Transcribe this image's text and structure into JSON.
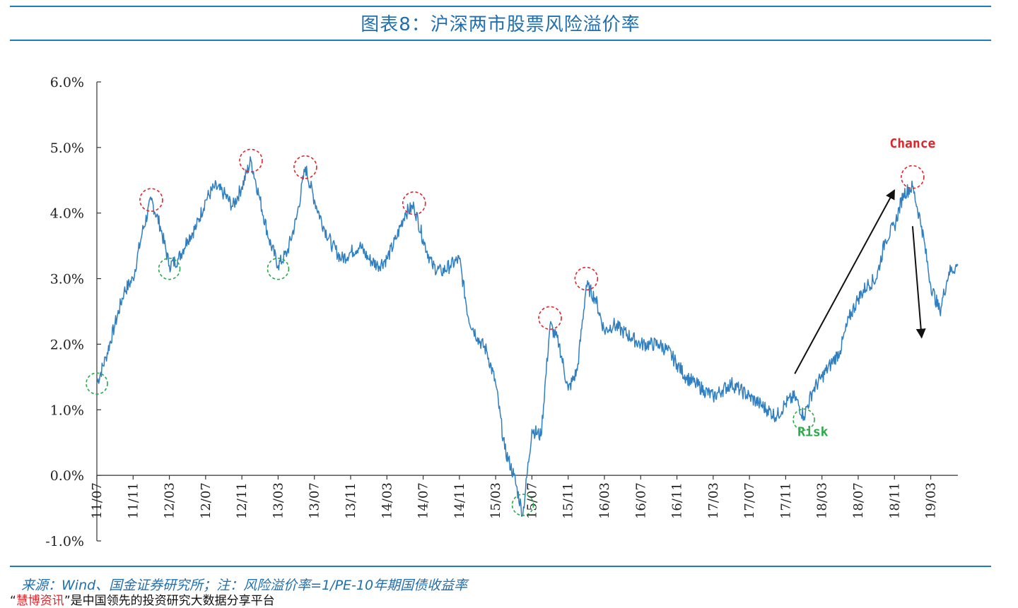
{
  "title": "图表8：沪深两市股票风险溢价率",
  "source": "来源：Wind、国金证券研究所；注：风险溢价率=1/PE-10年期国债收益率",
  "footer": {
    "quote_open": "“",
    "brand": "慧博资讯",
    "quote_close": "”",
    "text": "是中国领先的投资研究大数据分享平台"
  },
  "chart_data": {
    "type": "line",
    "title": "图表8：沪深两市股票风险溢价率",
    "xlabel": "",
    "ylabel": "",
    "ylim": [
      -1.0,
      6.0
    ],
    "yticks": [
      -1.0,
      0.0,
      1.0,
      2.0,
      3.0,
      4.0,
      5.0,
      6.0
    ],
    "ytick_labels": [
      "-1.0%",
      "0.0%",
      "1.0%",
      "2.0%",
      "3.0%",
      "4.0%",
      "5.0%",
      "6.0%"
    ],
    "xticks": [
      "11/07",
      "11/11",
      "12/03",
      "12/07",
      "12/11",
      "13/03",
      "13/07",
      "13/11",
      "14/03",
      "14/07",
      "14/11",
      "15/03",
      "15/07",
      "15/11",
      "16/03",
      "16/07",
      "16/11",
      "17/03",
      "17/07",
      "17/11",
      "18/03",
      "18/07",
      "18/11",
      "19/03"
    ],
    "x_end": "19/06",
    "grid": false,
    "color": "#2f7fc1",
    "series": [
      {
        "name": "",
        "points": [
          [
            "11/07",
            1.4
          ],
          [
            "11/08",
            1.8
          ],
          [
            "11/09",
            2.3
          ],
          [
            "11/10",
            2.8
          ],
          [
            "11/11",
            3.0
          ],
          [
            "11/12",
            3.7
          ],
          [
            "12/01",
            4.2
          ],
          [
            "12/02",
            3.8
          ],
          [
            "12/03",
            3.2
          ],
          [
            "12/04",
            3.3
          ],
          [
            "12/05",
            3.6
          ],
          [
            "12/06",
            3.8
          ],
          [
            "12/07",
            4.2
          ],
          [
            "12/08",
            4.4
          ],
          [
            "12/09",
            4.3
          ],
          [
            "12/10",
            4.1
          ],
          [
            "12/11",
            4.4
          ],
          [
            "12/12",
            4.8
          ],
          [
            "13/01",
            4.2
          ],
          [
            "13/02",
            3.6
          ],
          [
            "13/03",
            3.2
          ],
          [
            "13/04",
            3.4
          ],
          [
            "13/05",
            3.9
          ],
          [
            "13/06",
            4.7
          ],
          [
            "13/07",
            4.2
          ],
          [
            "13/08",
            3.8
          ],
          [
            "13/09",
            3.5
          ],
          [
            "13/10",
            3.3
          ],
          [
            "13/11",
            3.4
          ],
          [
            "13/12",
            3.5
          ],
          [
            "14/01",
            3.3
          ],
          [
            "14/02",
            3.2
          ],
          [
            "14/03",
            3.3
          ],
          [
            "14/04",
            3.6
          ],
          [
            "14/05",
            4.0
          ],
          [
            "14/06",
            4.1
          ],
          [
            "14/07",
            3.6
          ],
          [
            "14/08",
            3.2
          ],
          [
            "14/09",
            3.1
          ],
          [
            "14/10",
            3.2
          ],
          [
            "14/11",
            3.3
          ],
          [
            "14/12",
            2.4
          ],
          [
            "15/01",
            2.1
          ],
          [
            "15/02",
            1.9
          ],
          [
            "15/03",
            1.4
          ],
          [
            "15/04",
            0.4
          ],
          [
            "15/05",
            0.0
          ],
          [
            "15/06",
            -0.6
          ],
          [
            "15/07",
            0.7
          ],
          [
            "15/08",
            0.6
          ],
          [
            "15/09",
            2.3
          ],
          [
            "15/10",
            2.0
          ],
          [
            "15/11",
            1.3
          ],
          [
            "15/12",
            1.6
          ],
          [
            "16/01",
            2.9
          ],
          [
            "16/02",
            2.7
          ],
          [
            "16/03",
            2.2
          ],
          [
            "16/04",
            2.3
          ],
          [
            "16/05",
            2.2
          ],
          [
            "16/06",
            2.1
          ],
          [
            "16/07",
            2.0
          ],
          [
            "16/08",
            2.0
          ],
          [
            "16/09",
            2.0
          ],
          [
            "16/10",
            1.9
          ],
          [
            "16/11",
            1.7
          ],
          [
            "16/12",
            1.5
          ],
          [
            "17/01",
            1.4
          ],
          [
            "17/02",
            1.3
          ],
          [
            "17/03",
            1.2
          ],
          [
            "17/04",
            1.3
          ],
          [
            "17/05",
            1.4
          ],
          [
            "17/06",
            1.3
          ],
          [
            "17/07",
            1.2
          ],
          [
            "17/08",
            1.1
          ],
          [
            "17/09",
            1.0
          ],
          [
            "17/10",
            0.9
          ],
          [
            "17/11",
            1.1
          ],
          [
            "17/12",
            1.2
          ],
          [
            "18/01",
            0.9
          ],
          [
            "18/02",
            1.3
          ],
          [
            "18/03",
            1.5
          ],
          [
            "18/04",
            1.7
          ],
          [
            "18/05",
            1.9
          ],
          [
            "18/06",
            2.4
          ],
          [
            "18/07",
            2.7
          ],
          [
            "18/08",
            2.9
          ],
          [
            "18/09",
            3.0
          ],
          [
            "18/10",
            3.6
          ],
          [
            "18/11",
            3.8
          ],
          [
            "18/12",
            4.3
          ],
          [
            "19/01",
            4.4
          ],
          [
            "19/02",
            3.8
          ],
          [
            "19/03",
            2.9
          ],
          [
            "19/04",
            2.5
          ],
          [
            "19/05",
            3.1
          ],
          [
            "19/06",
            3.2
          ]
        ]
      }
    ],
    "highlights": {
      "chance_color": "#e0242a",
      "risk_color": "#2aaa4a",
      "chance": [
        [
          "12/01",
          4.2
        ],
        [
          "12/12",
          4.8
        ],
        [
          "13/06",
          4.7
        ],
        [
          "14/06",
          4.15
        ],
        [
          "15/09",
          2.4
        ],
        [
          "16/01",
          3.0
        ],
        [
          "19/01",
          4.55
        ]
      ],
      "risk": [
        [
          "11/07",
          1.4
        ],
        [
          "12/03",
          3.15
        ],
        [
          "13/03",
          3.15
        ],
        [
          "15/06",
          -0.45
        ],
        [
          "18/01",
          0.85
        ]
      ]
    },
    "arrows": [
      {
        "from": [
          "17/12",
          1.55
        ],
        "to": [
          "18/11",
          4.35
        ]
      },
      {
        "from": [
          "19/01",
          3.8
        ],
        "to": [
          "19/02",
          2.1
        ]
      }
    ],
    "annotations": [
      {
        "text": "Chance",
        "at": [
          "19/01",
          5.0
        ],
        "color": "#e0242a"
      },
      {
        "text": "Risk",
        "at": [
          "18/02",
          0.6
        ],
        "color": "#2aaa4a"
      }
    ]
  }
}
